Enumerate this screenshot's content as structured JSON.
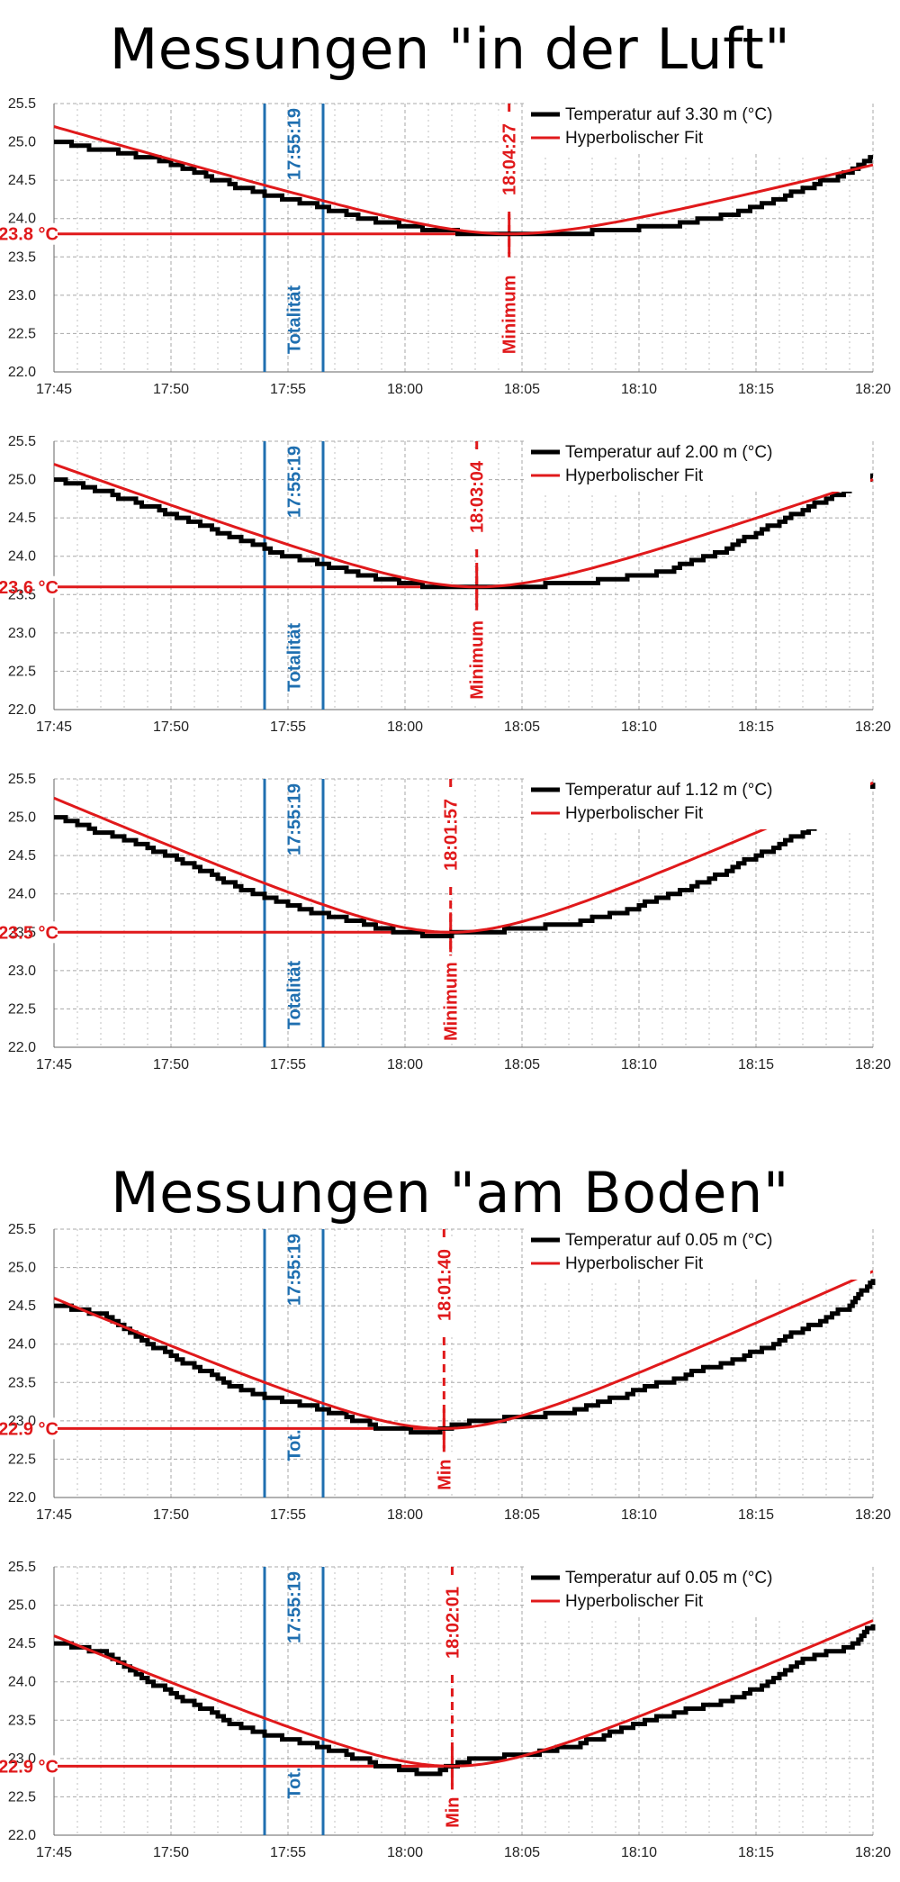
{
  "headings": {
    "air": "Messungen \"in der Luft\"",
    "ground": "Messungen \"am Boden\""
  },
  "colors": {
    "measurement": "#000000",
    "fit": "#e0191b",
    "totality": "#1f6fb0",
    "grid": "#a8a8a8"
  },
  "chart_data": [
    {
      "type": "line",
      "xlim": [
        "17:45",
        "18:20"
      ],
      "xticks": [
        "17:45",
        "17:50",
        "17:55",
        "18:00",
        "18:05",
        "18:10",
        "18:15",
        "18:20"
      ],
      "ylim": [
        22.0,
        25.5
      ],
      "yticks": [
        "22.0",
        "22.5",
        "23.0",
        "23.5",
        "24.0",
        "24.5",
        "25.0",
        "25.5"
      ],
      "grid": true,
      "legend": "top-right",
      "series": [
        {
          "name": "Temperatur auf 3.30 m (°C)",
          "style": "measurement",
          "x": [
            "17:45",
            "17:47",
            "17:49",
            "17:51",
            "17:53",
            "17:55",
            "17:57",
            "17:59",
            "18:01",
            "18:03",
            "18:05",
            "18:07",
            "18:09",
            "18:11",
            "18:13",
            "18:15",
            "18:17",
            "18:19",
            "18:20"
          ],
          "values": [
            25.0,
            24.9,
            24.8,
            24.6,
            24.4,
            24.25,
            24.1,
            23.95,
            23.85,
            23.8,
            23.8,
            23.8,
            23.85,
            23.9,
            24.0,
            24.15,
            24.4,
            24.6,
            24.8
          ]
        },
        {
          "name": "Hyperbolischer Fit",
          "style": "fit",
          "fit": {
            "t_min": "18:04:27",
            "y_min": 23.8,
            "y_start": 25.2,
            "y_end": 24.7
          }
        }
      ],
      "totality": {
        "start": "17:54",
        "end": "17:56:30",
        "time_label": "17:55:19",
        "label": "Totalität"
      },
      "minimum": {
        "time": "18:04:27",
        "value": 23.8,
        "value_label": "23.8 °C",
        "time_label": "18:04:27",
        "label": "Minimum"
      }
    },
    {
      "type": "line",
      "xlim": [
        "17:45",
        "18:20"
      ],
      "xticks": [
        "17:45",
        "17:50",
        "17:55",
        "18:00",
        "18:05",
        "18:10",
        "18:15",
        "18:20"
      ],
      "ylim": [
        22.0,
        25.5
      ],
      "yticks": [
        "22.0",
        "22.5",
        "23.0",
        "23.5",
        "24.0",
        "24.5",
        "25.0",
        "25.5"
      ],
      "grid": true,
      "legend": "top-right",
      "series": [
        {
          "name": "Temperatur auf 2.00 m (°C)",
          "style": "measurement",
          "x": [
            "17:45",
            "17:47",
            "17:49",
            "17:51",
            "17:53",
            "17:55",
            "17:57",
            "17:59",
            "18:01",
            "18:03",
            "18:05",
            "18:07",
            "18:09",
            "18:11",
            "18:13",
            "18:15",
            "18:17",
            "18:19",
            "18:20"
          ],
          "values": [
            25.0,
            24.85,
            24.65,
            24.45,
            24.2,
            24.0,
            23.85,
            23.7,
            23.6,
            23.6,
            23.6,
            23.65,
            23.7,
            23.8,
            24.0,
            24.3,
            24.6,
            24.9,
            25.05
          ]
        },
        {
          "name": "Hyperbolischer Fit",
          "style": "fit",
          "fit": {
            "t_min": "18:03:04",
            "y_min": 23.6,
            "y_start": 25.2,
            "y_end": 25.0
          }
        }
      ],
      "totality": {
        "start": "17:54",
        "end": "17:56:30",
        "time_label": "17:55:19",
        "label": "Totalität"
      },
      "minimum": {
        "time": "18:03:04",
        "value": 23.6,
        "value_label": "23.6 °C",
        "time_label": "18:03:04",
        "label": "Minimum"
      }
    },
    {
      "type": "line",
      "xlim": [
        "17:45",
        "18:20"
      ],
      "xticks": [
        "17:45",
        "17:50",
        "17:55",
        "18:00",
        "18:05",
        "18:10",
        "18:15",
        "18:20"
      ],
      "ylim": [
        22.0,
        25.5
      ],
      "yticks": [
        "22.0",
        "22.5",
        "23.0",
        "23.5",
        "24.0",
        "24.5",
        "25.0",
        "25.5"
      ],
      "grid": true,
      "legend": "top-right",
      "series": [
        {
          "name": "Temperatur auf 1.12 m (°C)",
          "style": "measurement",
          "x": [
            "17:45",
            "17:47",
            "17:49",
            "17:51",
            "17:53",
            "17:55",
            "17:57",
            "17:59",
            "18:01",
            "18:03",
            "18:05",
            "18:07",
            "18:09",
            "18:11",
            "18:13",
            "18:15",
            "18:17",
            "18:19",
            "18:20"
          ],
          "values": [
            25.0,
            24.8,
            24.6,
            24.35,
            24.05,
            23.85,
            23.7,
            23.55,
            23.45,
            23.5,
            23.55,
            23.6,
            23.75,
            23.95,
            24.2,
            24.5,
            24.8,
            25.2,
            25.45
          ]
        },
        {
          "name": "Hyperbolischer Fit",
          "style": "fit",
          "fit": {
            "t_min": "18:01:57",
            "y_min": 23.5,
            "y_start": 25.25,
            "y_end": 25.45
          }
        }
      ],
      "totality": {
        "start": "17:54",
        "end": "17:56:30",
        "time_label": "17:55:19",
        "label": "Totalität"
      },
      "minimum": {
        "time": "18:01:57",
        "value": 23.5,
        "value_label": "23.5 °C",
        "time_label": "18:01:57",
        "label": "Minimum"
      }
    },
    {
      "type": "line",
      "xlim": [
        "17:45",
        "18:20"
      ],
      "xticks": [
        "17:45",
        "17:50",
        "17:55",
        "18:00",
        "18:05",
        "18:10",
        "18:15",
        "18:20"
      ],
      "ylim": [
        22.0,
        25.5
      ],
      "yticks": [
        "22.0",
        "22.5",
        "23.0",
        "23.5",
        "24.0",
        "24.5",
        "25.0",
        "25.5"
      ],
      "grid": true,
      "legend": "top-right",
      "series": [
        {
          "name": "Temperatur auf 0.05 m (°C)",
          "style": "measurement",
          "x": [
            "17:45",
            "17:47",
            "17:49",
            "17:51",
            "17:53",
            "17:55",
            "17:57",
            "17:59",
            "18:01",
            "18:03",
            "18:05",
            "18:07",
            "18:09",
            "18:11",
            "18:13",
            "18:15",
            "18:17",
            "18:19",
            "18:20"
          ],
          "values": [
            24.5,
            24.4,
            24.0,
            23.7,
            23.4,
            23.25,
            23.1,
            22.9,
            22.85,
            23.0,
            23.05,
            23.1,
            23.3,
            23.5,
            23.7,
            23.9,
            24.2,
            24.5,
            24.85
          ]
        },
        {
          "name": "Hyperbolischer Fit",
          "style": "fit",
          "fit": {
            "t_min": "18:01:40",
            "y_min": 22.9,
            "y_start": 24.6,
            "y_end": 24.95
          }
        }
      ],
      "totality": {
        "start": "17:54",
        "end": "17:56:30",
        "time_label": "17:55:19",
        "label": "Tot."
      },
      "minimum": {
        "time": "18:01:40",
        "value": 22.9,
        "value_label": "22.9 °C",
        "time_label": "18:01:40",
        "label": "Min"
      }
    },
    {
      "type": "line",
      "xlim": [
        "17:45",
        "18:20"
      ],
      "xticks": [
        "17:45",
        "17:50",
        "17:55",
        "18:00",
        "18:05",
        "18:10",
        "18:15",
        "18:20"
      ],
      "ylim": [
        22.0,
        25.5
      ],
      "yticks": [
        "22.0",
        "22.5",
        "23.0",
        "23.5",
        "24.0",
        "24.5",
        "25.0",
        "25.5"
      ],
      "grid": true,
      "legend": "top-right",
      "series": [
        {
          "name": "Temperatur auf 0.05 m (°C)",
          "style": "measurement",
          "x": [
            "17:45",
            "17:47",
            "17:49",
            "17:51",
            "17:53",
            "17:55",
            "17:57",
            "17:59",
            "18:01",
            "18:03",
            "18:05",
            "18:07",
            "18:09",
            "18:11",
            "18:13",
            "18:15",
            "18:17",
            "18:19",
            "18:20"
          ],
          "values": [
            24.5,
            24.4,
            24.0,
            23.7,
            23.4,
            23.25,
            23.1,
            22.9,
            22.8,
            23.0,
            23.05,
            23.15,
            23.35,
            23.55,
            23.7,
            23.9,
            24.3,
            24.45,
            24.75
          ]
        },
        {
          "name": "Hyperbolischer Fit",
          "style": "fit",
          "fit": {
            "t_min": "18:02:01",
            "y_min": 22.9,
            "y_start": 24.6,
            "y_end": 24.8
          }
        }
      ],
      "totality": {
        "start": "17:54",
        "end": "17:56:30",
        "time_label": "17:55:19",
        "label": "Tot."
      },
      "minimum": {
        "time": "18:02:01",
        "value": 22.9,
        "value_label": "22.9 °C",
        "time_label": "18:02:01",
        "label": "Min"
      }
    }
  ]
}
